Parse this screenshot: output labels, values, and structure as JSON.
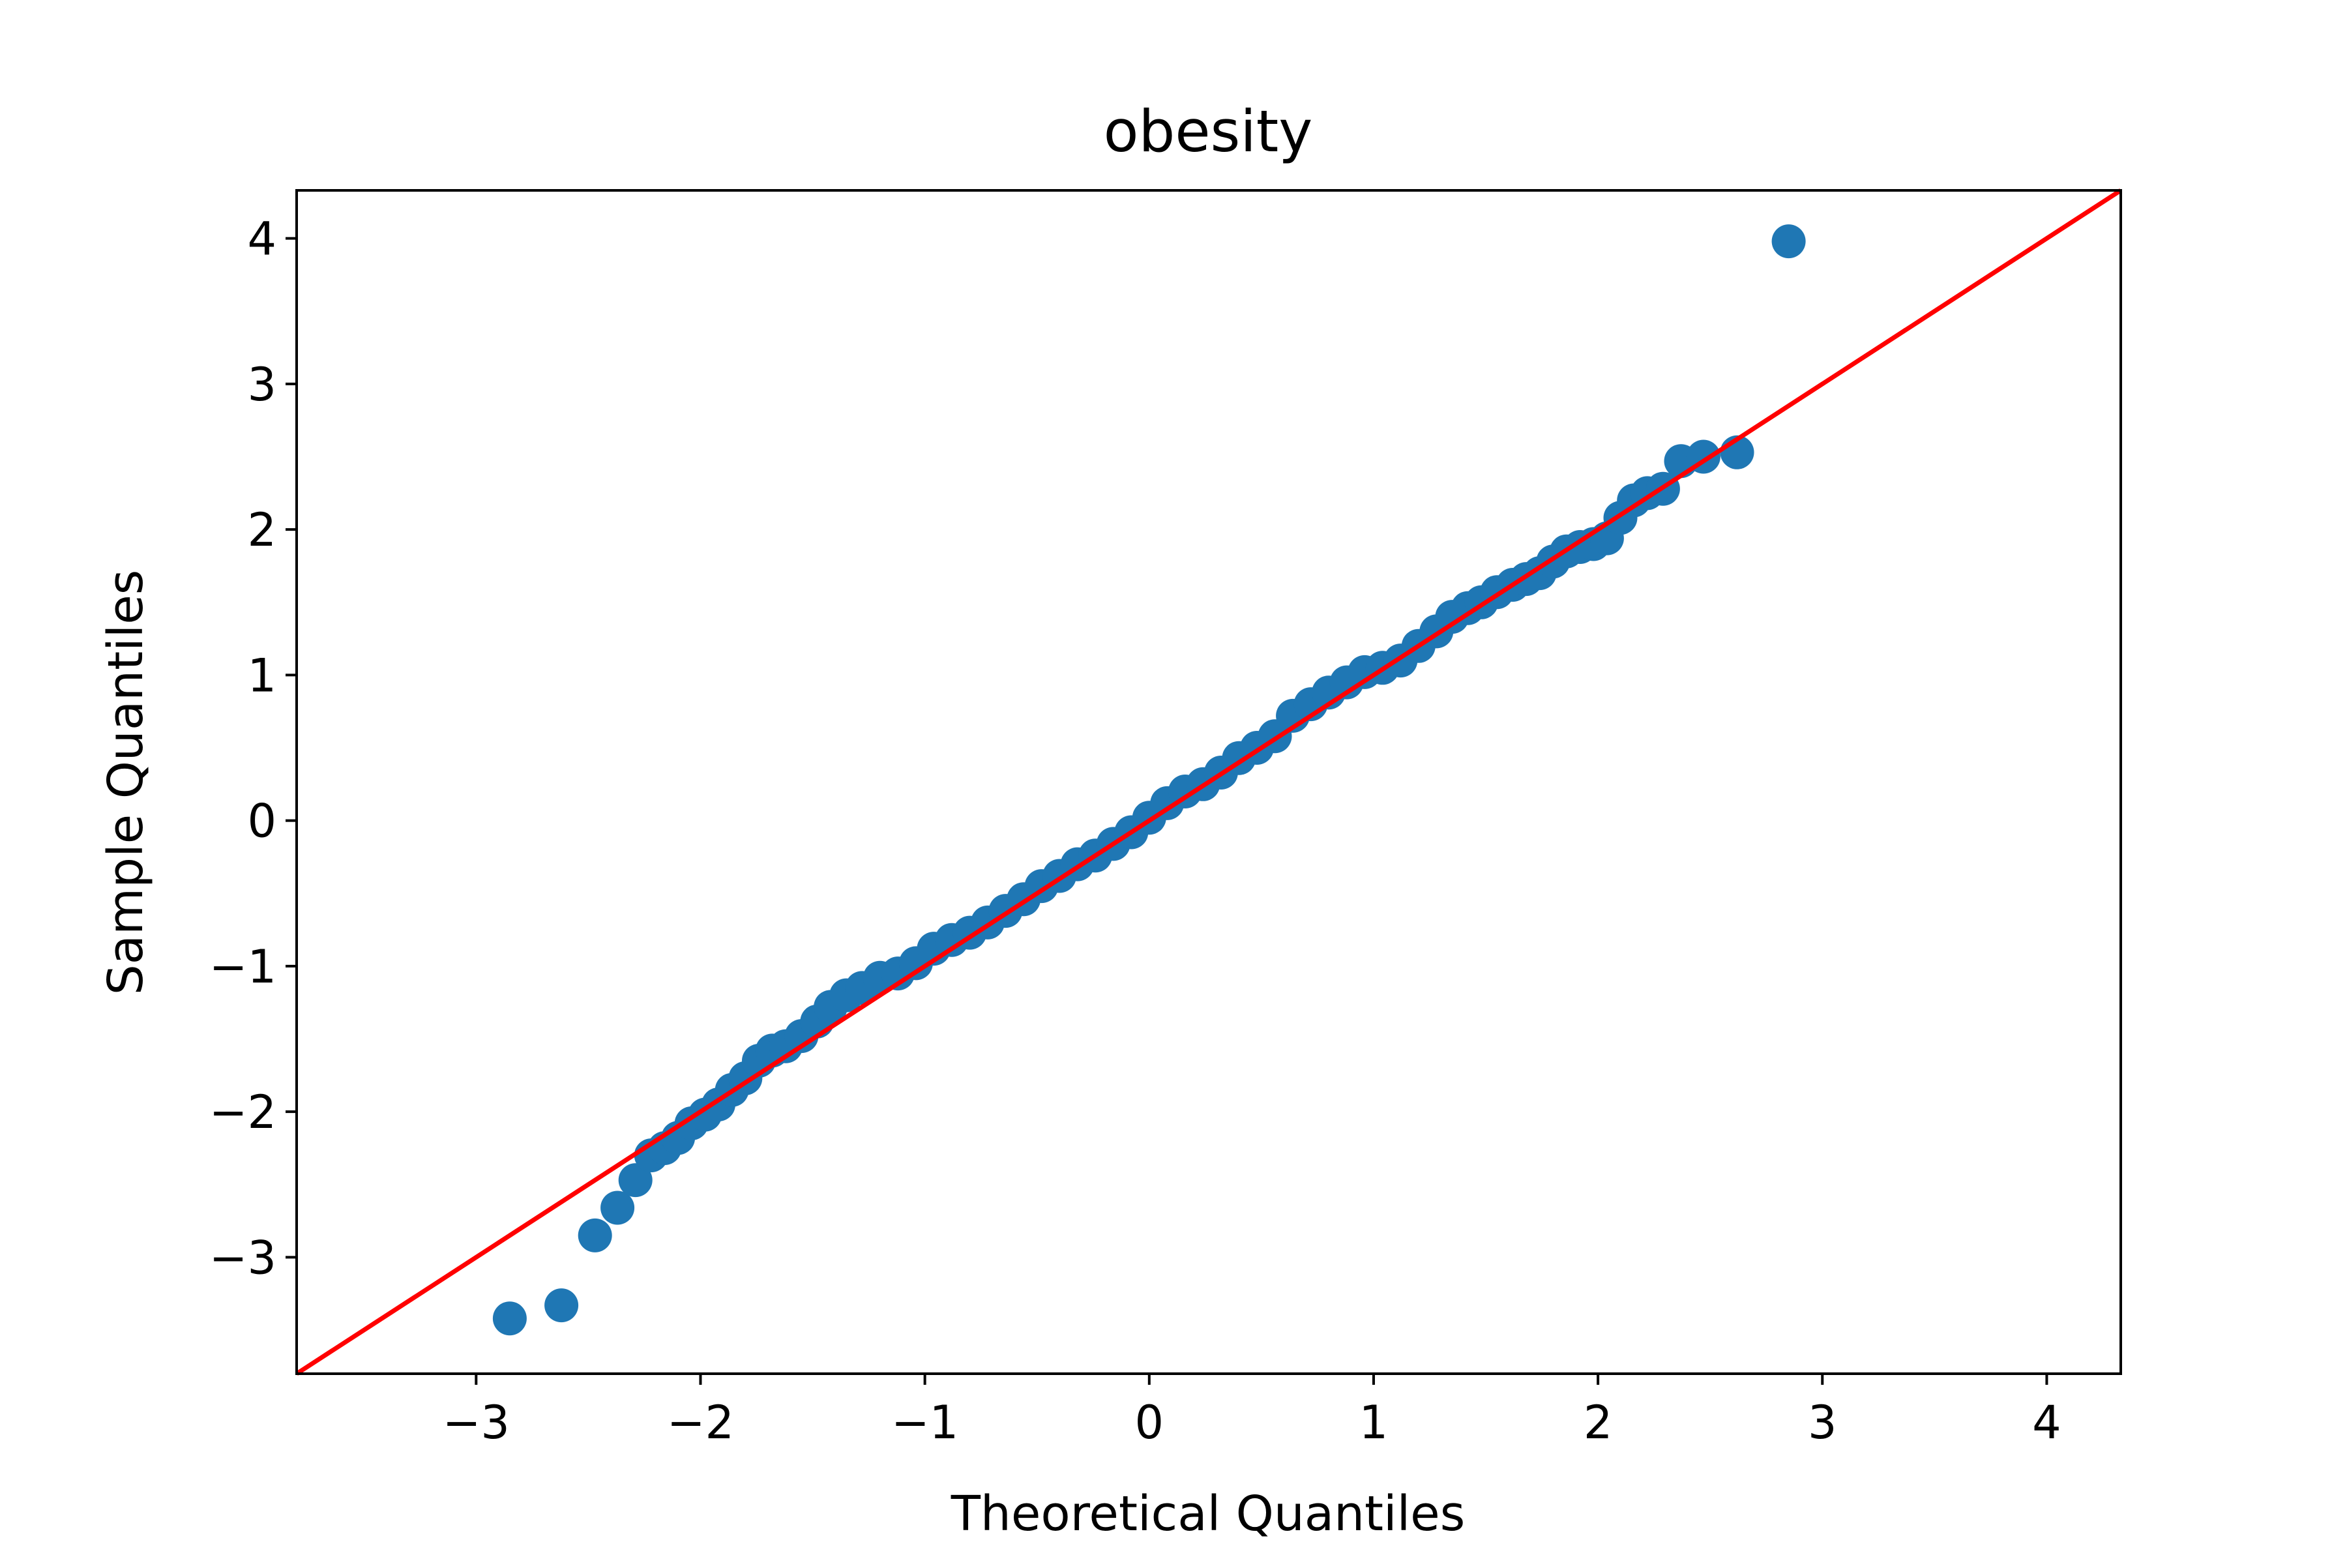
{
  "chart_data": {
    "type": "scatter",
    "title": "obesity",
    "xlabel": "Theoretical Quantiles",
    "ylabel": "Sample Quantiles",
    "xlim": [
      -3.8,
      4.33
    ],
    "ylim": [
      -3.8,
      4.33
    ],
    "x_ticks": [
      -3,
      -2,
      -1,
      0,
      1,
      2,
      3,
      4
    ],
    "x_tick_labels": [
      "−3",
      "−2",
      "−1",
      "0",
      "1",
      "2",
      "3",
      "4"
    ],
    "y_ticks": [
      -3,
      -2,
      -1,
      0,
      1,
      2,
      3,
      4
    ],
    "y_tick_labels": [
      "−3",
      "−2",
      "−1",
      "0",
      "1",
      "2",
      "3",
      "4"
    ],
    "grid": false,
    "colors": {
      "points": "#1f77b4",
      "reference_line": "#ff0000",
      "axes": "#000000"
    },
    "reference_line": {
      "slope": 1,
      "intercept": 0
    },
    "series": [
      {
        "x": [
          -2.85,
          -2.62,
          -2.47,
          -2.37,
          -2.29,
          -2.22,
          -2.16,
          -2.1,
          -2.04,
          -1.98,
          -1.92,
          -1.86,
          -1.8,
          -1.74,
          -1.68,
          -1.62,
          -1.55,
          -1.48,
          -1.42,
          -1.35,
          -1.28,
          -1.2,
          -1.12,
          -1.04,
          -0.96,
          -0.88,
          -0.8,
          -0.72,
          -0.64,
          -0.56,
          -0.48,
          -0.4,
          -0.32,
          -0.24,
          -0.16,
          -0.08,
          0.0,
          0.08,
          0.16,
          0.24,
          0.32,
          0.4,
          0.48,
          0.56,
          0.64,
          0.72,
          0.8,
          0.88,
          0.96,
          1.04,
          1.12,
          1.2,
          1.28,
          1.35,
          1.42,
          1.48,
          1.55,
          1.62,
          1.68,
          1.74,
          1.8,
          1.86,
          1.92,
          1.98,
          2.04,
          2.1,
          2.16,
          2.22,
          2.29,
          2.37,
          2.47,
          2.62,
          2.85
        ],
        "y": [
          -3.42,
          -3.33,
          -2.85,
          -2.66,
          -2.47,
          -2.3,
          -2.25,
          -2.18,
          -2.08,
          -2.02,
          -1.95,
          -1.85,
          -1.77,
          -1.65,
          -1.58,
          -1.55,
          -1.48,
          -1.38,
          -1.28,
          -1.2,
          -1.15,
          -1.08,
          -1.05,
          -0.98,
          -0.88,
          -0.82,
          -0.77,
          -0.7,
          -0.62,
          -0.54,
          -0.45,
          -0.38,
          -0.3,
          -0.24,
          -0.16,
          -0.08,
          0.02,
          0.12,
          0.2,
          0.25,
          0.33,
          0.43,
          0.5,
          0.58,
          0.72,
          0.8,
          0.88,
          0.95,
          1.02,
          1.05,
          1.1,
          1.2,
          1.3,
          1.4,
          1.46,
          1.5,
          1.57,
          1.62,
          1.66,
          1.7,
          1.78,
          1.85,
          1.88,
          1.9,
          1.94,
          2.08,
          2.2,
          2.25,
          2.28,
          2.47,
          2.5,
          2.53,
          3.98
        ]
      }
    ]
  }
}
